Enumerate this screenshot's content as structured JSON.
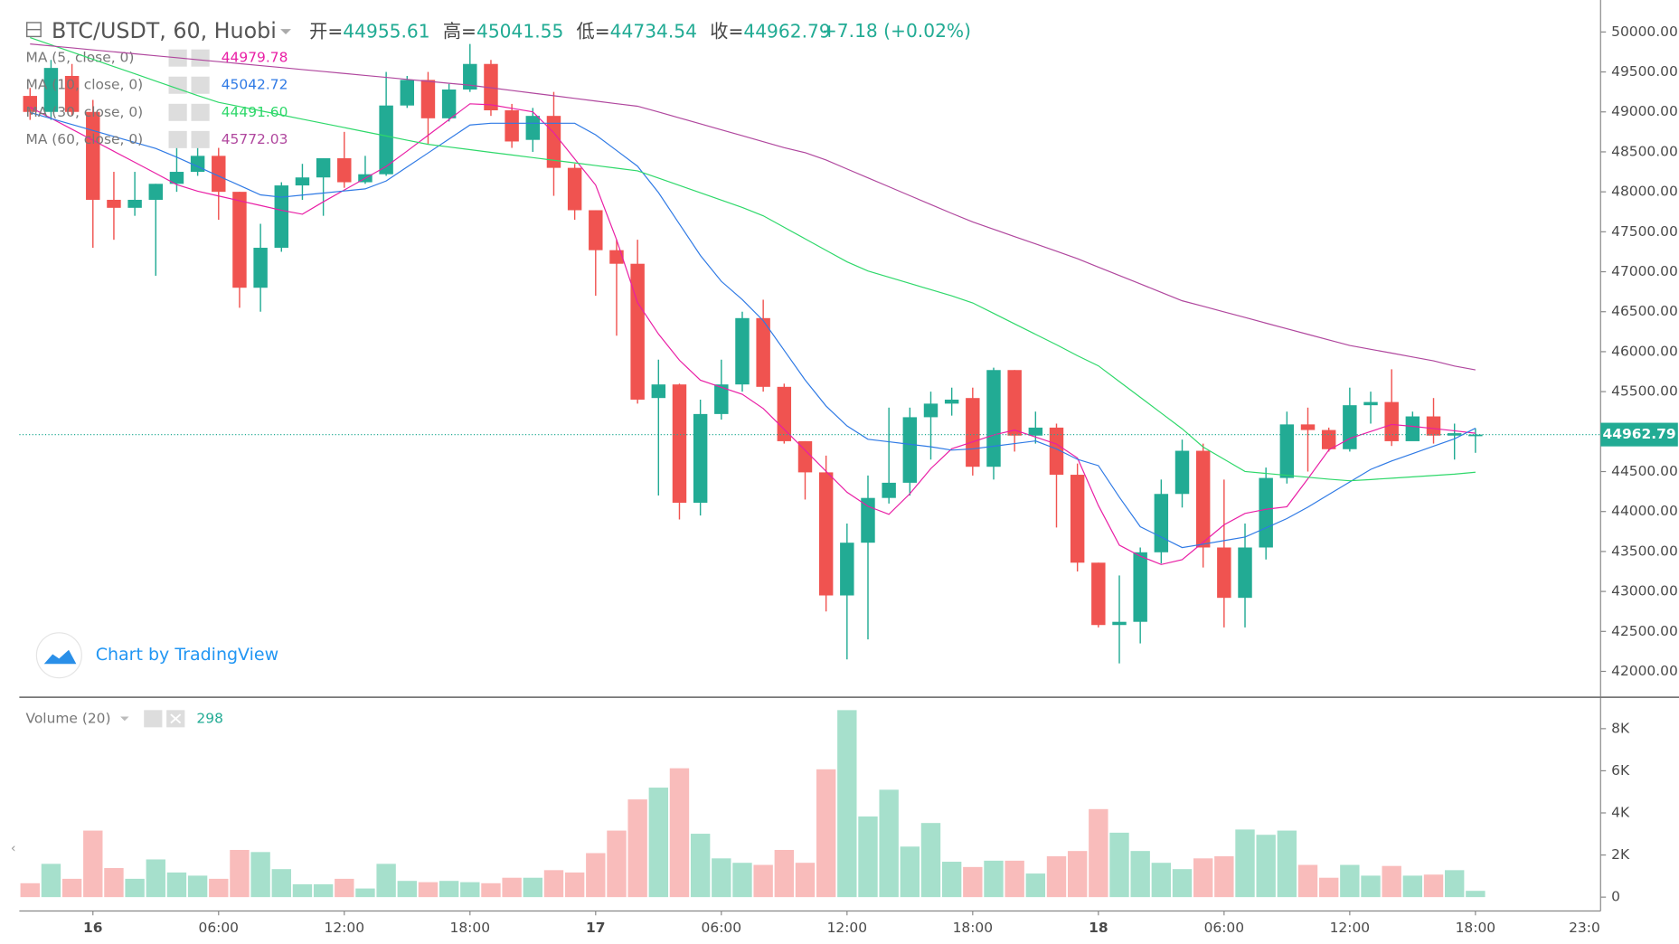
{
  "chart_data": {
    "type": "candlestick",
    "title": "BTC/USDT, 60, Huobi",
    "ohlc_labels": [
      "开=",
      "高=",
      "低=",
      "收="
    ],
    "change": "+7.18 (+0.02%)",
    "watermark": "Chart by TradingView",
    "x_end_label": "23:0",
    "up_color": "#22ab94",
    "down_color": "#f05350",
    "categories": [
      null,
      null,
      null,
      "16",
      null,
      null,
      null,
      null,
      null,
      "06:00",
      null,
      null,
      null,
      null,
      null,
      "12:00",
      null,
      null,
      null,
      null,
      null,
      "18:00",
      null,
      null,
      null,
      null,
      null,
      "17",
      null,
      null,
      null,
      null,
      null,
      "06:00",
      null,
      null,
      null,
      null,
      null,
      "12:00",
      null,
      null,
      null,
      null,
      null,
      "18:00",
      null,
      null,
      null,
      null,
      null,
      "18",
      null,
      null,
      null,
      null,
      null,
      "06:00",
      null,
      null,
      null,
      null,
      null,
      "12:00",
      null,
      null,
      null,
      null,
      null,
      "18:00"
    ],
    "open": [
      49200,
      49000,
      49450,
      49000,
      47900,
      47800,
      47900,
      48100,
      48250,
      48450,
      48000,
      46800,
      47300,
      48080,
      48180,
      48420,
      48120,
      48220,
      49080,
      49400,
      48920,
      49280,
      49600,
      49020,
      48650,
      48950,
      48300,
      47770,
      47270,
      47100,
      45420,
      45590,
      44110,
      45220,
      45590,
      46420,
      45560,
      44880,
      44490,
      42950,
      43610,
      44170,
      44360,
      45180,
      45350,
      45420,
      44560,
      45770,
      44950,
      45050,
      44460,
      43360,
      42580,
      42620,
      43490,
      44220,
      44760,
      43550,
      42920,
      43550,
      44420,
      45090,
      45020,
      44780,
      45330,
      45370,
      44880,
      45190,
      44950,
      44955.61
    ],
    "high": [
      49300,
      49650,
      49600,
      49150,
      48250,
      48250,
      48100,
      48700,
      48700,
      48550,
      48000,
      47600,
      48120,
      48350,
      48420,
      48750,
      48450,
      49500,
      49450,
      49500,
      49350,
      49850,
      49650,
      49100,
      49050,
      49250,
      48350,
      47770,
      47400,
      47400,
      45900,
      45600,
      45400,
      45900,
      46500,
      46650,
      45600,
      44880,
      44700,
      43850,
      44450,
      45300,
      45300,
      45500,
      45550,
      45550,
      45800,
      45770,
      45250,
      45100,
      44600,
      43360,
      43200,
      43550,
      44400,
      44900,
      44850,
      44400,
      43850,
      44550,
      45250,
      45300,
      45050,
      45550,
      45500,
      45780,
      45250,
      45420,
      45100,
      45041.55
    ],
    "low": [
      48900,
      48900,
      48950,
      47300,
      47400,
      47700,
      46950,
      48000,
      48200,
      47650,
      46550,
      46500,
      47250,
      47900,
      47700,
      48050,
      48100,
      48200,
      49050,
      48600,
      48880,
      49250,
      48950,
      48550,
      48500,
      47950,
      47650,
      46700,
      46200,
      45350,
      44200,
      43900,
      43950,
      45150,
      45500,
      45500,
      44850,
      44150,
      42750,
      42150,
      42400,
      44100,
      44200,
      44650,
      45200,
      44450,
      44400,
      44750,
      44850,
      43800,
      43250,
      42550,
      42100,
      42350,
      43350,
      44050,
      43300,
      42550,
      42550,
      43400,
      44350,
      44500,
      44750,
      44750,
      45100,
      44820,
      44900,
      44850,
      44650,
      44734.54
    ],
    "close": [
      49000,
      49550,
      49000,
      47900,
      47800,
      47900,
      48100,
      48250,
      48450,
      48000,
      46800,
      47300,
      48080,
      48180,
      48420,
      48120,
      48220,
      49080,
      49400,
      48920,
      49280,
      49600,
      49020,
      48630,
      48950,
      48300,
      47770,
      47270,
      47100,
      45400,
      45590,
      44110,
      45220,
      45590,
      46420,
      45560,
      44880,
      44490,
      42950,
      43610,
      44170,
      44360,
      45180,
      45350,
      45400,
      44560,
      45770,
      44950,
      45050,
      44460,
      43360,
      42580,
      42620,
      43490,
      44220,
      44760,
      43550,
      42920,
      43550,
      44420,
      45090,
      45020,
      44780,
      45330,
      45370,
      44880,
      45190,
      44950,
      44980,
      44962.79
    ],
    "series": [
      {
        "name": "MA (5, close, 0)",
        "color": "#e91ea5",
        "value_label": "44979.78",
        "values": [
          49059,
          48921,
          48783,
          48645,
          48507,
          48369,
          48231,
          48090,
          48008,
          47948,
          47888,
          47829,
          47769,
          47720,
          47875,
          48023,
          48170,
          48317,
          48510,
          48707,
          48904,
          49101,
          49089,
          49045,
          49001,
          48740,
          48412,
          48085,
          47400,
          46613,
          46221,
          45893,
          45643,
          45555,
          45467,
          45289,
          45028,
          44767,
          44503,
          44241,
          44066,
          43965,
          44223,
          44537,
          44785,
          44871,
          44958,
          45019,
          44932,
          44844,
          44670,
          44075,
          43579,
          43442,
          43337,
          43397,
          43615,
          43834,
          43976,
          44028,
          44060,
          44410,
          44770,
          44914,
          45001,
          45089,
          45066,
          45038,
          45010,
          44979.78
        ]
      },
      {
        "name": "MA (10, close, 0)",
        "color": "#2f7ae5",
        "value_label": "45042.72",
        "values": [
          48992,
          48917,
          48842,
          48767,
          48692,
          48617,
          48542,
          48434,
          48316,
          48198,
          48080,
          47962,
          47933,
          47959,
          47985,
          48011,
          48037,
          48136,
          48311,
          48486,
          48661,
          48836,
          48858,
          48858,
          48858,
          48858,
          48858,
          48713,
          48517,
          48320,
          47990,
          47597,
          47204,
          46880,
          46652,
          46388,
          46017,
          45646,
          45320,
          45071,
          44904,
          44873,
          44841,
          44810,
          44768,
          44784,
          44817,
          44850,
          44883,
          44783,
          44653,
          44574,
          44180,
          43810,
          43680,
          43549,
          43592,
          43636,
          43681,
          43795,
          43912,
          44055,
          44213,
          44370,
          44527,
          44632,
          44725,
          44818,
          44910,
          45042.72
        ]
      },
      {
        "name": "MA (30, close, 0)",
        "color": "#2ed86a",
        "value_label": "44491.60",
        "values": [
          49930,
          49839,
          49749,
          49658,
          49567,
          49477,
          49386,
          49295,
          49204,
          49120,
          49067,
          49014,
          48962,
          48909,
          48857,
          48804,
          48751,
          48699,
          48646,
          48594,
          48561,
          48528,
          48494,
          48461,
          48428,
          48395,
          48362,
          48329,
          48296,
          48263,
          48172,
          48080,
          47988,
          47896,
          47804,
          47700,
          47556,
          47412,
          47268,
          47124,
          47010,
          46932,
          46854,
          46776,
          46698,
          46610,
          46479,
          46348,
          46217,
          46087,
          45950,
          45823,
          45626,
          45429,
          45232,
          45035,
          44807,
          44654,
          44501,
          44477,
          44453,
          44429,
          44405,
          44385,
          44400,
          44417,
          44434,
          44451,
          44468,
          44491.6
        ]
      },
      {
        "name": "MA (60, close, 0)",
        "color": "#b0479e",
        "value_label": "45772.03",
        "values": [
          49850,
          49825,
          49801,
          49776,
          49752,
          49727,
          49702,
          49678,
          49653,
          49629,
          49604,
          49579,
          49555,
          49530,
          49506,
          49481,
          49456,
          49432,
          49407,
          49383,
          49358,
          49334,
          49301,
          49268,
          49235,
          49202,
          49169,
          49136,
          49103,
          49071,
          48999,
          48925,
          48851,
          48776,
          48702,
          48628,
          48553,
          48490,
          48398,
          48286,
          48175,
          48064,
          47952,
          47841,
          47730,
          47624,
          47532,
          47440,
          47349,
          47257,
          47164,
          47058,
          46953,
          46848,
          46742,
          46637,
          46568,
          46498,
          46428,
          46357,
          46287,
          46217,
          46147,
          46078,
          46030,
          45982,
          45933,
          45885,
          45820,
          45772.03
        ]
      }
    ],
    "ylim": [
      41690,
      50400
    ],
    "yticks": [
      {
        "value": 42000,
        "label": "42000.00"
      },
      {
        "value": 42500,
        "label": "42500.00"
      },
      {
        "value": 43000,
        "label": "43000.00"
      },
      {
        "value": 43500,
        "label": "43500.00"
      },
      {
        "value": 44000,
        "label": "44000.00"
      },
      {
        "value": 44500,
        "label": "44500.00"
      },
      {
        "value": 45000,
        "label": "45000.00"
      },
      {
        "value": 45500,
        "label": "45500.00"
      },
      {
        "value": 46000,
        "label": "46000.00"
      },
      {
        "value": 46500,
        "label": "46500.00"
      },
      {
        "value": 47000,
        "label": "47000.00"
      },
      {
        "value": 47500,
        "label": "47500.00"
      },
      {
        "value": 48000,
        "label": "48000.00"
      },
      {
        "value": 48500,
        "label": "48500.00"
      },
      {
        "value": 49000,
        "label": "49000.00"
      },
      {
        "value": 49500,
        "label": "49500.00"
      },
      {
        "value": 50000,
        "label": "50000.00"
      }
    ],
    "volume": {
      "name": "Volume (20)",
      "up_color": "#a6e0cc",
      "down_color": "#f9bcbb",
      "values": [
        660,
        1580,
        870,
        3160,
        1380,
        870,
        1790,
        1170,
        1020,
        870,
        2240,
        2140,
        1330,
        610,
        610,
        870,
        410,
        1580,
        770,
        710,
        770,
        710,
        660,
        920,
        920,
        1280,
        1170,
        2090,
        3160,
        4640,
        5200,
        6120,
        3010,
        1840,
        1630,
        1530,
        2240,
        1630,
        6070,
        8880,
        3830,
        5100,
        2400,
        3520,
        1680,
        1430,
        1730,
        1730,
        1120,
        1940,
        2190,
        4180,
        3060,
        2190,
        1630,
        1330,
        1840,
        1940,
        3210,
        2960,
        3160,
        1530,
        920,
        1530,
        1020,
        1480,
        1020,
        1070,
        1280,
        298
      ],
      "ylim": [
        -660,
        9340
      ],
      "yticks": [
        0,
        {
          "value": 2000,
          "label": "2K"
        },
        {
          "value": 4000,
          "label": "4K"
        },
        {
          "value": 6000,
          "label": "6K"
        },
        {
          "value": 8000,
          "label": "8K"
        }
      ]
    }
  }
}
